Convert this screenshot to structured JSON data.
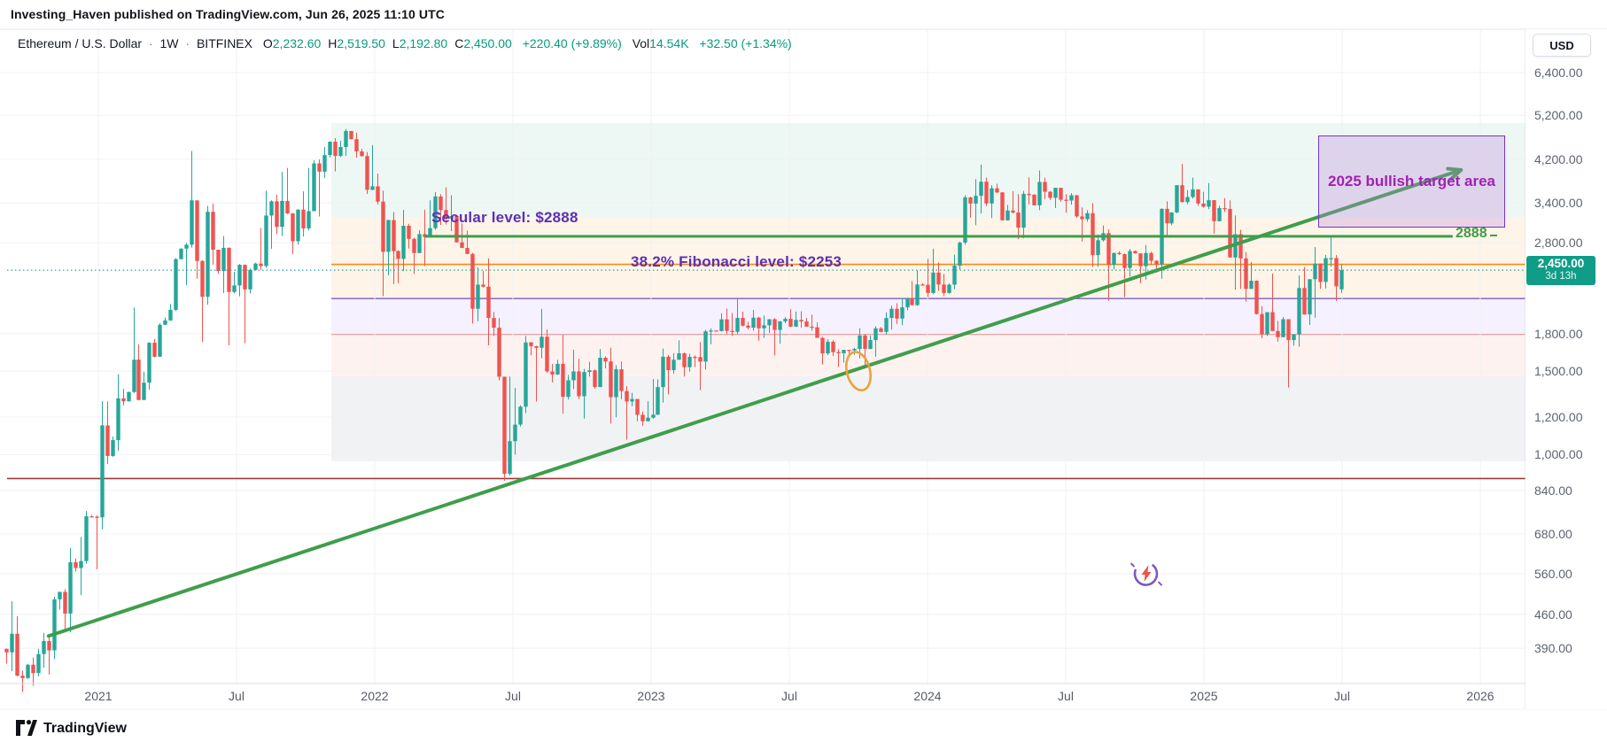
{
  "published_bar": {
    "text": "Investing_Haven published on TradingView.com, Jun 26, 2025 11:10 UTC"
  },
  "legend": {
    "symbol": "Ethereum / U.S. Dollar",
    "separator": "·",
    "timeframe": "1W",
    "exchange": "BITFINEX",
    "ohlc": [
      {
        "k": "O",
        "v": "2,232.60"
      },
      {
        "k": "H",
        "v": "2,519.50"
      },
      {
        "k": "L",
        "v": "2,192.80"
      },
      {
        "k": "C",
        "v": "2,450.00"
      }
    ],
    "change": "+220.40 (+9.89%)",
    "vol_label": "Vol",
    "vol_value": "14.54K",
    "vol_change": "+32.50 (+1.34%)",
    "up_color": "#089981"
  },
  "price_axis": {
    "currency": "USD",
    "ticks": [
      {
        "price": 6400,
        "label": "6,400.00"
      },
      {
        "price": 5200,
        "label": "5,200.00"
      },
      {
        "price": 4200,
        "label": "4,200.00"
      },
      {
        "price": 3400,
        "label": "3,400.00"
      },
      {
        "price": 2800,
        "label": "2,800.00"
      },
      {
        "price": 1800,
        "label": "1,800.00"
      },
      {
        "price": 1500,
        "label": "1,500.00"
      },
      {
        "price": 1200,
        "label": "1,200.00"
      },
      {
        "price": 1000,
        "label": "1,000.00"
      },
      {
        "price": 840,
        "label": "840.00"
      },
      {
        "price": 680,
        "label": "680.00"
      },
      {
        "price": 560,
        "label": "560.00"
      },
      {
        "price": 460,
        "label": "460.00"
      },
      {
        "price": 390,
        "label": "390.00"
      }
    ],
    "badge": {
      "price_label": "2,450.00",
      "price": 2450,
      "countdown": "3d 13h",
      "color": "#0f9d87"
    }
  },
  "time_axis": {
    "labels": [
      {
        "label": "2021",
        "t": 2021
      },
      {
        "label": "Jul",
        "t": 2021.5
      },
      {
        "label": "2022",
        "t": 2022
      },
      {
        "label": "Jul",
        "t": 2022.5
      },
      {
        "label": "2023",
        "t": 2023
      },
      {
        "label": "Jul",
        "t": 2023.5
      },
      {
        "label": "2024",
        "t": 2024
      },
      {
        "label": "Jul",
        "t": 2024.5
      },
      {
        "label": "2025",
        "t": 2025
      },
      {
        "label": "Jul",
        "t": 2025.5
      },
      {
        "label": "2026",
        "t": 2026
      }
    ]
  },
  "footer": {
    "brand": "TradingView"
  },
  "annotations": {
    "secular": {
      "label": "Secular level: $2888",
      "price": 2888,
      "t1": 2022.18,
      "t2": 2025.9,
      "color": "#3f9e4c",
      "end_label": "2888"
    },
    "fib": {
      "label": "38.2% Fibonacci level: $2253",
      "price": 2253,
      "drawn_price": 2520,
      "color": "#f28c1d"
    },
    "current_price_line": {
      "price": 2450,
      "color": "#26a69a"
    },
    "red_support_line": {
      "price": 890,
      "color": "#9c3b38"
    },
    "trendline": {
      "t1": 2020.82,
      "p1": 414,
      "t2": 2025.93,
      "p2": 3987,
      "color": "#3f9e4c"
    },
    "target_box": {
      "label": "2025 bullish target area",
      "t1": 2025.41,
      "t2": 2026.09,
      "p1": 2910,
      "p2": 4460,
      "border": "#7434c9",
      "fill": "rgba(187,134,219,0.30)"
    },
    "highlight_ellipse": {
      "t": 2023.75,
      "price": 1500,
      "color": "#e8a33d"
    },
    "flash_sticker": {
      "t": 2024.79,
      "price": 560,
      "ring_color": "#7e57c2",
      "bolt_color": "#ef5350"
    }
  },
  "zones": [
    {
      "name": "green-target-zone",
      "p1": 3170,
      "p2": 5010,
      "t1": 2021.843,
      "fill": "rgba(52,168,120,0.09)",
      "border": ""
    },
    {
      "name": "orange-zone",
      "p1": 2135,
      "p2": 3170,
      "t1": 2021.843,
      "fill": "rgba(247,147,26,0.10)",
      "border": ""
    },
    {
      "name": "lavender-zone",
      "p1": 1793,
      "p2": 2135,
      "t1": 2021.843,
      "fill": "rgba(124,77,255,0.08)",
      "border": "#6d4ac4"
    },
    {
      "name": "pink-zone",
      "p1": 1462,
      "p2": 1793,
      "t1": 2021.843,
      "fill": "rgba(239,83,80,0.08)",
      "border": "#e98a8a"
    },
    {
      "name": "gray-zone",
      "p1": 968,
      "p2": 1462,
      "t1": 2021.843,
      "fill": "rgba(120,125,135,0.10)",
      "border": ""
    }
  ],
  "chart_data": {
    "type": "candlestick",
    "title": "Ethereum / U.S. Dollar",
    "exchange": "BITFINEX",
    "timeframe": "1W",
    "y_scale": "log",
    "y_ticks": [
      390,
      460,
      560,
      680,
      840,
      1000,
      1200,
      1500,
      1800,
      2800,
      3400,
      4200,
      5200,
      6400
    ],
    "x_range": [
      2020.67,
      2026.16
    ],
    "up_color": "#26a69a",
    "down_color": "#ef5350",
    "start_time": 2020.6667,
    "monthly_ohlc": [
      [
        2020,
        9,
        389,
        490,
        316,
        360
      ],
      [
        2020,
        10,
        360,
        420,
        325,
        386
      ],
      [
        2020,
        11,
        386,
        635,
        370,
        576
      ],
      [
        2020,
        12,
        576,
        760,
        505,
        737
      ],
      [
        2021,
        1,
        737,
        1477,
        695,
        1314
      ],
      [
        2021,
        2,
        1314,
        2042,
        1270,
        1418
      ],
      [
        2021,
        3,
        1418,
        1947,
        1370,
        1919
      ],
      [
        2021,
        4,
        1919,
        2798,
        1915,
        2773
      ],
      [
        2021,
        5,
        2773,
        4372,
        1730,
        2706
      ],
      [
        2021,
        6,
        2706,
        2891,
        1700,
        2275
      ],
      [
        2021,
        7,
        2275,
        2540,
        1718,
        2530
      ],
      [
        2021,
        8,
        2530,
        3950,
        2450,
        3430
      ],
      [
        2021,
        9,
        3430,
        4027,
        2651,
        3001
      ],
      [
        2021,
        10,
        3001,
        4460,
        2970,
        4288
      ],
      [
        2021,
        11,
        4288,
        4868,
        3959,
        4631
      ],
      [
        2021,
        12,
        4631,
        4780,
        3550,
        3683
      ],
      [
        2022,
        1,
        3683,
        3917,
        2160,
        2688
      ],
      [
        2022,
        2,
        2688,
        3283,
        2300,
        2919
      ],
      [
        2022,
        3,
        2919,
        3580,
        2500,
        3282
      ],
      [
        2022,
        4,
        3282,
        3666,
        2750,
        2730
      ],
      [
        2022,
        5,
        2730,
        2970,
        1700,
        1942
      ],
      [
        2022,
        6,
        1942,
        2000,
        880,
        1067
      ],
      [
        2022,
        7,
        1067,
        1780,
        1000,
        1680
      ],
      [
        2022,
        8,
        1680,
        2030,
        1420,
        1554
      ],
      [
        2022,
        9,
        1554,
        1790,
        1220,
        1328
      ],
      [
        2022,
        10,
        1328,
        1670,
        1190,
        1572
      ],
      [
        2022,
        11,
        1572,
        1680,
        1075,
        1294
      ],
      [
        2022,
        12,
        1294,
        1350,
        1150,
        1196
      ],
      [
        2023,
        1,
        1196,
        1674,
        1190,
        1585
      ],
      [
        2023,
        2,
        1585,
        1742,
        1461,
        1606
      ],
      [
        2023,
        3,
        1606,
        1846,
        1368,
        1822
      ],
      [
        2023,
        4,
        1822,
        2141,
        1780,
        1871
      ],
      [
        2023,
        5,
        1871,
        2018,
        1740,
        1874
      ],
      [
        2023,
        6,
        1874,
        1950,
        1620,
        1934
      ],
      [
        2023,
        7,
        1934,
        2028,
        1825,
        1856
      ],
      [
        2023,
        8,
        1856,
        1900,
        1550,
        1645
      ],
      [
        2023,
        9,
        1645,
        1680,
        1531,
        1671
      ],
      [
        2023,
        10,
        1671,
        1865,
        1520,
        1815
      ],
      [
        2023,
        11,
        1815,
        2140,
        1790,
        2045
      ],
      [
        2023,
        12,
        2045,
        2445,
        2015,
        2282
      ],
      [
        2024,
        1,
        2282,
        2720,
        2150,
        2283
      ],
      [
        2024,
        2,
        2283,
        3525,
        2235,
        3386
      ],
      [
        2024,
        3,
        3386,
        4093,
        3050,
        3647
      ],
      [
        2024,
        4,
        3647,
        3730,
        2850,
        3012
      ],
      [
        2024,
        5,
        3012,
        3977,
        2860,
        3762
      ],
      [
        2024,
        6,
        3762,
        3840,
        3240,
        3437
      ],
      [
        2024,
        7,
        3437,
        3562,
        2815,
        3232
      ],
      [
        2024,
        8,
        3232,
        3395,
        2111,
        2513
      ],
      [
        2024,
        9,
        2513,
        2716,
        2150,
        2658
      ],
      [
        2024,
        10,
        2658,
        2768,
        2300,
        2518
      ],
      [
        2024,
        11,
        2518,
        3700,
        2350,
        3703
      ],
      [
        2024,
        12,
        3703,
        4107,
        3320,
        3336
      ],
      [
        2025,
        1,
        3336,
        3742,
        2925,
        3300
      ],
      [
        2025,
        2,
        3300,
        3440,
        2100,
        2237
      ],
      [
        2025,
        3,
        2237,
        2550,
        1760,
        1823
      ],
      [
        2025,
        4,
        1823,
        1950,
        1385,
        1794
      ],
      [
        2025,
        5,
        1794,
        2740,
        1690,
        2530
      ],
      [
        2025,
        6,
        2530,
        2880,
        2110,
        2450
      ]
    ],
    "last_candle": {
      "o": 2232.6,
      "h": 2519.5,
      "l": 2192.8,
      "c": 2450.0
    }
  }
}
